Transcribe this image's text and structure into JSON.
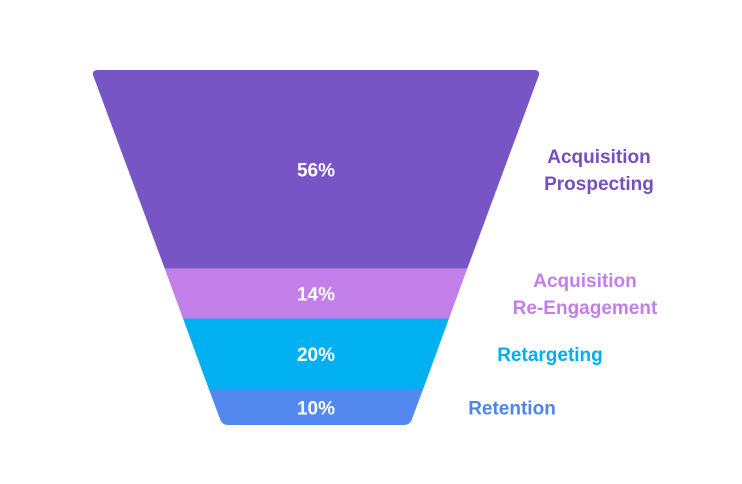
{
  "chart_data": {
    "type": "funnel",
    "categories": [
      "Acquisition Prospecting",
      "Acquisition Re-Engagement",
      "Retargeting",
      "Retention"
    ],
    "label_lines": [
      [
        "Acquisition",
        "Prospecting"
      ],
      [
        "Acquisition",
        "Re-Engagement"
      ],
      [
        "Retargeting"
      ],
      [
        "Retention"
      ]
    ],
    "values": [
      56,
      14,
      20,
      10
    ],
    "value_labels": [
      "56%",
      "14%",
      "20%",
      "10%"
    ],
    "colors": [
      "#7755c5",
      "#c27fe9",
      "#00b0f0",
      "#5388ee"
    ],
    "label_colors": [
      "#7350c2",
      "#c27fe9",
      "#00aeef",
      "#4f84ea"
    ],
    "unit": "%"
  }
}
